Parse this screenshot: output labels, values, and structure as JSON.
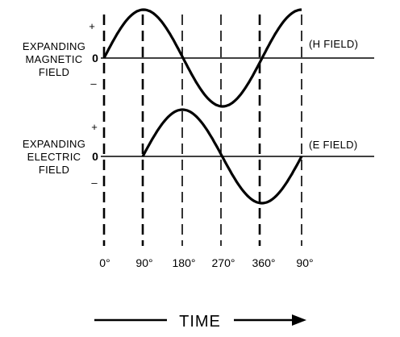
{
  "magnetic": {
    "label_lines": [
      "EXPANDING",
      "MAGNETIC",
      "FIELD"
    ],
    "plus": "+",
    "zero": "0",
    "minus": "–",
    "field_tag": "(H  FIELD)"
  },
  "electric": {
    "label_lines": [
      "EXPANDING",
      "ELECTRIC",
      "FIELD"
    ],
    "plus": "+",
    "zero": "0",
    "minus": "–",
    "field_tag": "(E  FIELD)"
  },
  "x_ticks": [
    "0°",
    "90°",
    "180°",
    "270°",
    "360°",
    "90°"
  ],
  "time_label": "TIME",
  "colors": {
    "ink": "#000000",
    "background": "#ffffff"
  }
}
